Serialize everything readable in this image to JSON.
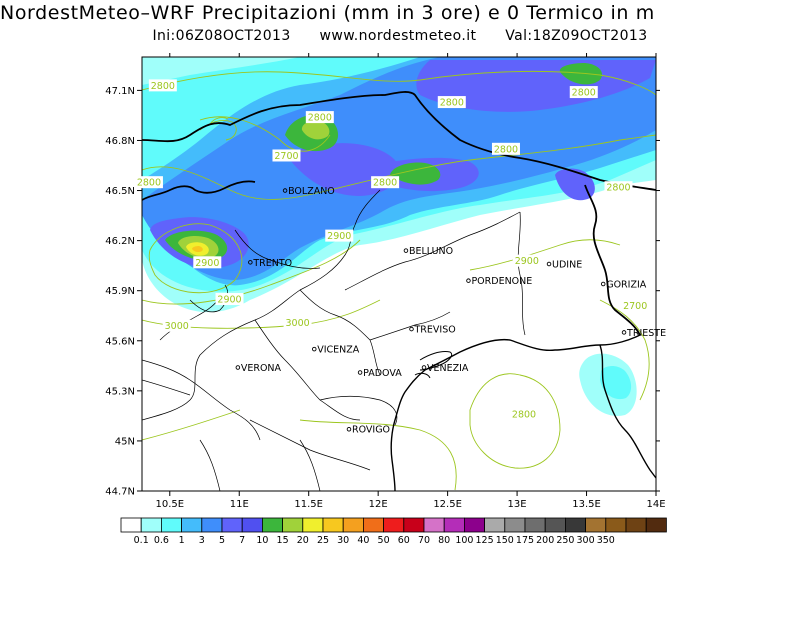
{
  "title": "NordestMeteo–WRF Precipitazioni (mm in 3 ore) e 0 Termico in m",
  "subtitle": {
    "init": "Ini:06Z08OCT2013",
    "site": "www.nordestmeteo.it",
    "valid": "Val:18Z09OCT2013"
  },
  "map": {
    "lon_range": [
      10.3,
      14.0
    ],
    "lat_range": [
      44.7,
      47.3
    ],
    "x_ticks": [
      {
        "value": 10.5,
        "label": "10.5E"
      },
      {
        "value": 11.0,
        "label": "11E"
      },
      {
        "value": 11.5,
        "label": "11.5E"
      },
      {
        "value": 12.0,
        "label": "12E"
      },
      {
        "value": 12.5,
        "label": "12.5E"
      },
      {
        "value": 13.0,
        "label": "13E"
      },
      {
        "value": 13.5,
        "label": "13.5E"
      },
      {
        "value": 14.0,
        "label": "14E"
      }
    ],
    "y_ticks": [
      {
        "value": 44.7,
        "label": "44.7N"
      },
      {
        "value": 45.0,
        "label": "45N"
      },
      {
        "value": 45.3,
        "label": "45.3N"
      },
      {
        "value": 45.6,
        "label": "45.6N"
      },
      {
        "value": 45.9,
        "label": "45.9N"
      },
      {
        "value": 46.2,
        "label": "46.2N"
      },
      {
        "value": 46.5,
        "label": "46.5N"
      },
      {
        "value": 46.8,
        "label": "46.8N"
      },
      {
        "value": 47.1,
        "label": "47.1N"
      }
    ],
    "cities": [
      {
        "name": "BOLZANO",
        "lon": 11.33,
        "lat": 46.5
      },
      {
        "name": "TRENTO",
        "lon": 11.08,
        "lat": 46.07
      },
      {
        "name": "BELLUNO",
        "lon": 12.2,
        "lat": 46.14
      },
      {
        "name": "UDINE",
        "lon": 13.23,
        "lat": 46.06
      },
      {
        "name": "PORDENONE",
        "lon": 12.65,
        "lat": 45.96
      },
      {
        "name": "GORIZIA",
        "lon": 13.62,
        "lat": 45.94
      },
      {
        "name": "TRIESTE",
        "lon": 13.77,
        "lat": 45.65
      },
      {
        "name": "TREVISO",
        "lon": 12.24,
        "lat": 45.67
      },
      {
        "name": "VICENZA",
        "lon": 11.54,
        "lat": 45.55
      },
      {
        "name": "VERONA",
        "lon": 10.99,
        "lat": 45.44
      },
      {
        "name": "PADOVA",
        "lon": 11.87,
        "lat": 45.41
      },
      {
        "name": "VENEZIA",
        "lon": 12.33,
        "lat": 45.44
      },
      {
        "name": "ROVIGO",
        "lon": 11.79,
        "lat": 45.07
      }
    ],
    "contour_labels": [
      {
        "text": "2800",
        "lon": 10.45,
        "lat": 47.13
      },
      {
        "text": "2800",
        "lon": 11.58,
        "lat": 46.94
      },
      {
        "text": "2700",
        "lon": 11.34,
        "lat": 46.71
      },
      {
        "text": "2800",
        "lon": 12.53,
        "lat": 47.03
      },
      {
        "text": "2800",
        "lon": 13.48,
        "lat": 47.09
      },
      {
        "text": "2800",
        "lon": 12.92,
        "lat": 46.75
      },
      {
        "text": "2800",
        "lon": 13.73,
        "lat": 46.52
      },
      {
        "text": "2800",
        "lon": 12.05,
        "lat": 46.55
      },
      {
        "text": "2800",
        "lon": 10.35,
        "lat": 46.55
      },
      {
        "text": "2900",
        "lon": 11.72,
        "lat": 46.23
      },
      {
        "text": "2900",
        "lon": 10.77,
        "lat": 46.07
      },
      {
        "text": "2900",
        "lon": 10.93,
        "lat": 45.85
      },
      {
        "text": "2900",
        "lon": 13.07,
        "lat": 46.08
      },
      {
        "text": "3000",
        "lon": 10.55,
        "lat": 45.69
      },
      {
        "text": "3000",
        "lon": 11.42,
        "lat": 45.71
      },
      {
        "text": "2700",
        "lon": 13.85,
        "lat": 45.81
      },
      {
        "text": "2800",
        "lon": 13.05,
        "lat": 45.16
      }
    ]
  },
  "legend": {
    "colors": [
      "#ffffff",
      "#a0fffa",
      "#60fbfb",
      "#44bcfb",
      "#3f8efb",
      "#6063fb",
      "#5050f0",
      "#3cb63c",
      "#a0d23a",
      "#f0ef2d",
      "#f7c81f",
      "#f4a01f",
      "#f06e19",
      "#ee1d1d",
      "#c8001a",
      "#d572c8",
      "#b42db8",
      "#8c008c",
      "#aaaaaa",
      "#8c8c8c",
      "#6e6e6e",
      "#555555",
      "#383838",
      "#a37331",
      "#8a5a1a",
      "#6e4214",
      "#522b0f"
    ],
    "labels": [
      "0.1",
      "0.6",
      "1",
      "3",
      "5",
      "7",
      "10",
      "15",
      "20",
      "25",
      "30",
      "40",
      "50",
      "60",
      "70",
      "80",
      "100",
      "125",
      "150",
      "175",
      "200",
      "250",
      "300",
      "350"
    ]
  }
}
